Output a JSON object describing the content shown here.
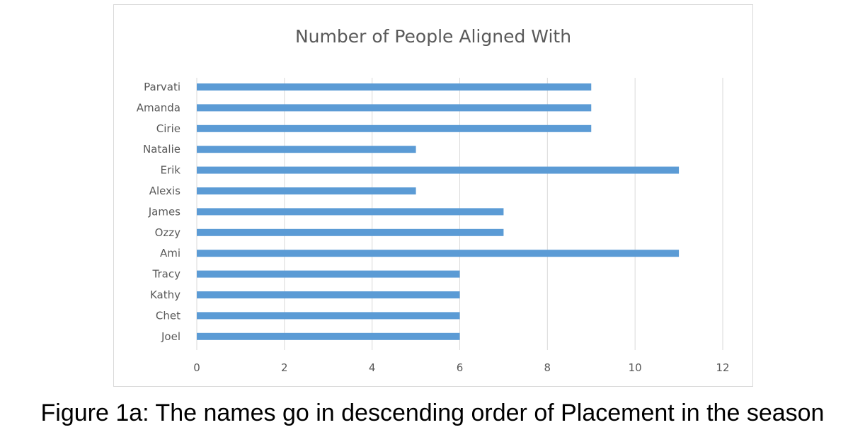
{
  "chart_data": {
    "type": "bar",
    "orientation": "horizontal",
    "title": "Number of People Aligned With",
    "categories": [
      "Parvati",
      "Amanda",
      "Cirie",
      "Natalie",
      "Erik",
      "Alexis",
      "James",
      "Ozzy",
      "Ami",
      "Tracy",
      "Kathy",
      "Chet",
      "Joel"
    ],
    "values": [
      9,
      9,
      9,
      5,
      11,
      5,
      7,
      7,
      11,
      6,
      6,
      6,
      6
    ],
    "xlim": [
      0,
      12
    ],
    "xticks": [
      "0",
      "2",
      "4",
      "6",
      "8",
      "10",
      "12"
    ],
    "grid": true,
    "bar_color": "#5b9bd5",
    "grid_color": "#d9d9d9",
    "label_color": "#595959"
  },
  "caption": "Figure 1a: The names go in descending order of Placement in the season"
}
